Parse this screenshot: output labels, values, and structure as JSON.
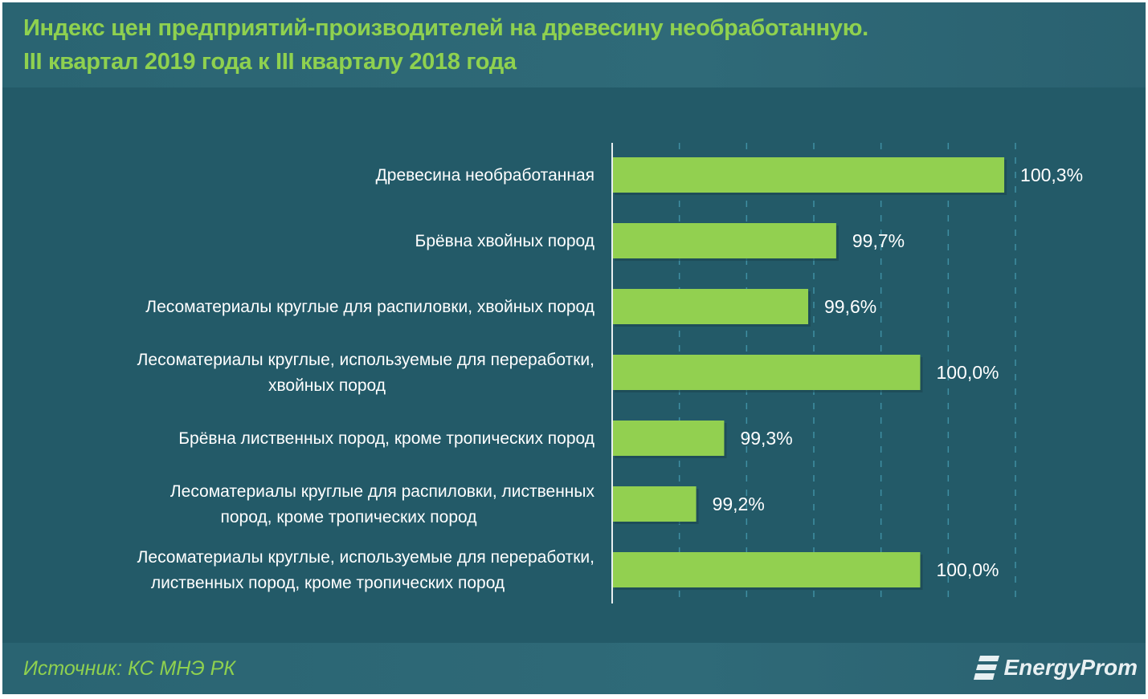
{
  "title_line1": "Индекс цен предприятий-производителей на древесину необработанную.",
  "title_line2": "III квартал  2019 года к III кварталу 2018 года",
  "source": "Источник: КС МНЭ РК",
  "logo": "EnergyProm",
  "colors": {
    "bar": "#92d050",
    "background": "#235a68",
    "title": "#8fd14f"
  },
  "chart_data": {
    "type": "bar",
    "orientation": "horizontal",
    "categories": [
      [
        "Древесина необработанная"
      ],
      [
        "Брёвна хвойных пород"
      ],
      [
        "Лесоматериалы круглые для распиловки, хвойных пород"
      ],
      [
        "Лесоматериалы круглые, используемые для переработки,",
        "хвойных пород"
      ],
      [
        "Брёвна лиственных пород, кроме тропических пород"
      ],
      [
        "Лесоматериалы круглые для распиловки, лиственных",
        "пород, кроме тропических пород"
      ],
      [
        "Лесоматериалы круглые, используемые для переработки,",
        "лиственных пород, кроме тропических пород"
      ]
    ],
    "values": [
      100.3,
      99.7,
      99.6,
      100.0,
      99.3,
      99.2,
      100.0
    ],
    "data_labels": [
      "100,3%",
      "99,7%",
      "99,6%",
      "100,0%",
      "99,3%",
      "99,2%",
      "100,0%"
    ],
    "xlim": [
      98.9,
      100.34
    ],
    "grid": "vertical dashed",
    "unit": "%"
  }
}
